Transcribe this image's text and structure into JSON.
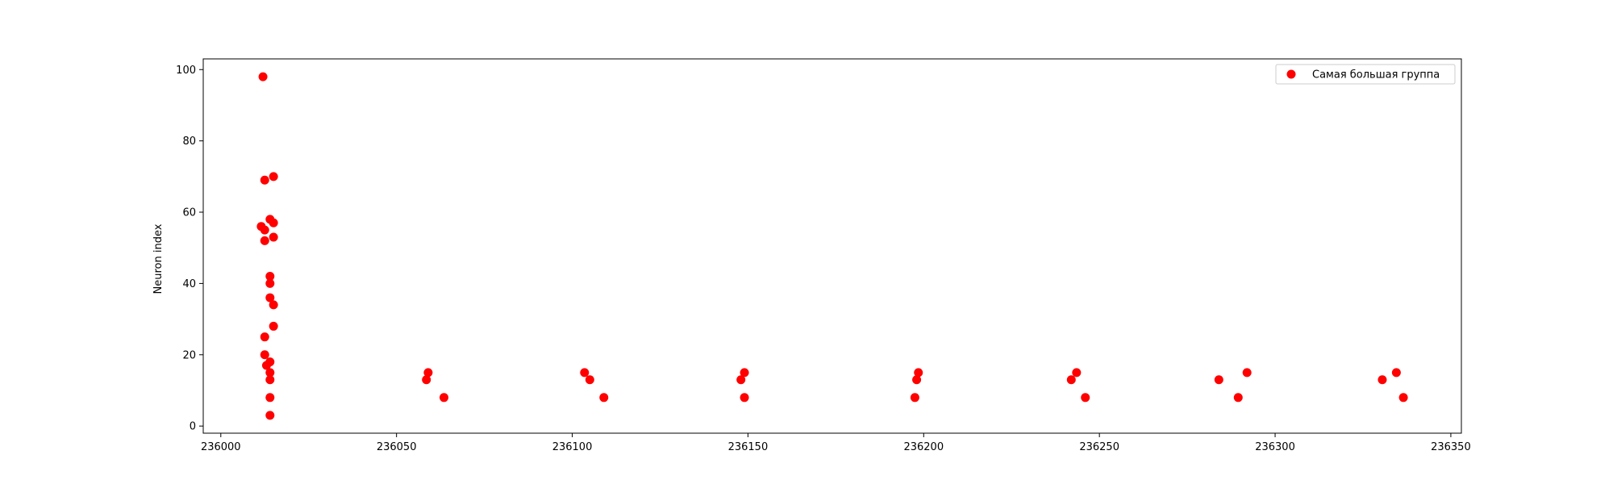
{
  "chart_data": {
    "type": "scatter",
    "title": "",
    "xlabel": "",
    "ylabel": "Neuron index",
    "xlim": [
      235995,
      236353
    ],
    "ylim": [
      -2,
      103
    ],
    "xticks": [
      236000,
      236050,
      236100,
      236150,
      236200,
      236250,
      236300,
      236350
    ],
    "yticks": [
      0,
      20,
      40,
      60,
      80,
      100
    ],
    "grid": false,
    "legend_position": "upper right",
    "series": [
      {
        "name": "Самая большая группа",
        "color": "#ff0000",
        "points": [
          [
            236012,
            98
          ],
          [
            236015,
            70
          ],
          [
            236012.5,
            69
          ],
          [
            236014,
            58
          ],
          [
            236015,
            57
          ],
          [
            236011.5,
            56
          ],
          [
            236012.5,
            55
          ],
          [
            236015,
            53
          ],
          [
            236012.5,
            52
          ],
          [
            236014,
            42
          ],
          [
            236014,
            40
          ],
          [
            236014,
            36
          ],
          [
            236015,
            34
          ],
          [
            236015,
            28
          ],
          [
            236012.5,
            25
          ],
          [
            236012.5,
            20
          ],
          [
            236014,
            18
          ],
          [
            236013,
            17
          ],
          [
            236014,
            15
          ],
          [
            236014,
            13
          ],
          [
            236014,
            8
          ],
          [
            236014,
            3
          ],
          [
            236059,
            15
          ],
          [
            236058.5,
            13
          ],
          [
            236063.5,
            8
          ],
          [
            236103.5,
            15
          ],
          [
            236105,
            13
          ],
          [
            236109,
            8
          ],
          [
            236149,
            15
          ],
          [
            236148,
            13
          ],
          [
            236149,
            8
          ],
          [
            236198.5,
            15
          ],
          [
            236198,
            13
          ],
          [
            236197.5,
            8
          ],
          [
            236243.5,
            15
          ],
          [
            236242,
            13
          ],
          [
            236246,
            8
          ],
          [
            236292,
            15
          ],
          [
            236284,
            13
          ],
          [
            236289.5,
            8
          ],
          [
            236334.5,
            15
          ],
          [
            236330.5,
            13
          ],
          [
            236336.5,
            8
          ]
        ]
      }
    ]
  }
}
